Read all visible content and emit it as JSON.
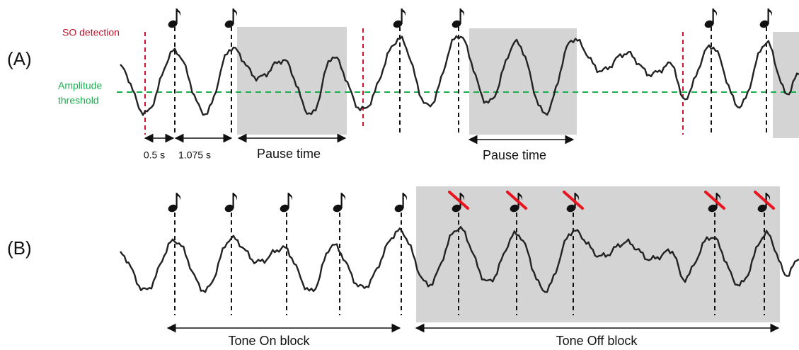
{
  "panel_a": {
    "label": "(A)",
    "so_detection": "SO detection",
    "threshold_label": [
      "Amplitude",
      "threshold"
    ],
    "intervals": [
      "0.5 s",
      "1.075 s"
    ],
    "pause_labels": [
      "Pause time",
      "Pause time"
    ]
  },
  "panel_b": {
    "label": "(B)",
    "blocks": [
      "Tone On block",
      "Tone Off block"
    ]
  }
}
